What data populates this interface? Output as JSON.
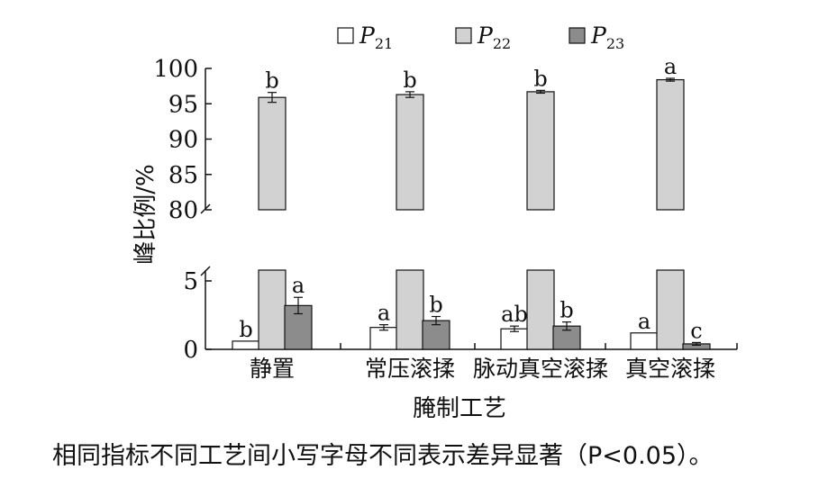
{
  "chart_data": {
    "type": "bar",
    "xlabel": "腌制工艺",
    "ylabel": "峰比例/%",
    "categories": [
      "静置",
      "常压滚揉",
      "脉动真空滚揉",
      "真空滚揉"
    ],
    "y_axis_break": {
      "lower_range": [
        0,
        6
      ],
      "upper_range": [
        80,
        100
      ]
    },
    "yticks_lower": [
      "0",
      "5"
    ],
    "yticks_upper": [
      "80",
      "85",
      "90",
      "95",
      "100"
    ],
    "legend_position": "top",
    "series": [
      {
        "name": "P21",
        "legend_main": "P",
        "legend_sub": "21",
        "color": "#ffffff",
        "values": [
          0.6,
          1.6,
          1.5,
          1.2
        ],
        "errors": [
          0,
          0.2,
          0.2,
          0
        ],
        "letters": [
          "b",
          "a",
          "ab",
          "a"
        ]
      },
      {
        "name": "P22",
        "legend_main": "P",
        "legend_sub": "22",
        "color": "#d2d2d2",
        "values": [
          95.9,
          96.3,
          96.7,
          98.4
        ],
        "errors": [
          0.7,
          0.4,
          0.2,
          0.2
        ],
        "letters": [
          "b",
          "b",
          "b",
          "a"
        ]
      },
      {
        "name": "P23",
        "legend_main": "P",
        "legend_sub": "23",
        "color": "#8c8c8c",
        "values": [
          3.2,
          2.1,
          1.7,
          0.4
        ],
        "errors": [
          0.6,
          0.3,
          0.3,
          0.1
        ],
        "letters": [
          "a",
          "b",
          "b",
          "c"
        ]
      }
    ]
  },
  "caption": "相同指标不同工艺间小写字母不同表示差异显著（P<0.05）。"
}
